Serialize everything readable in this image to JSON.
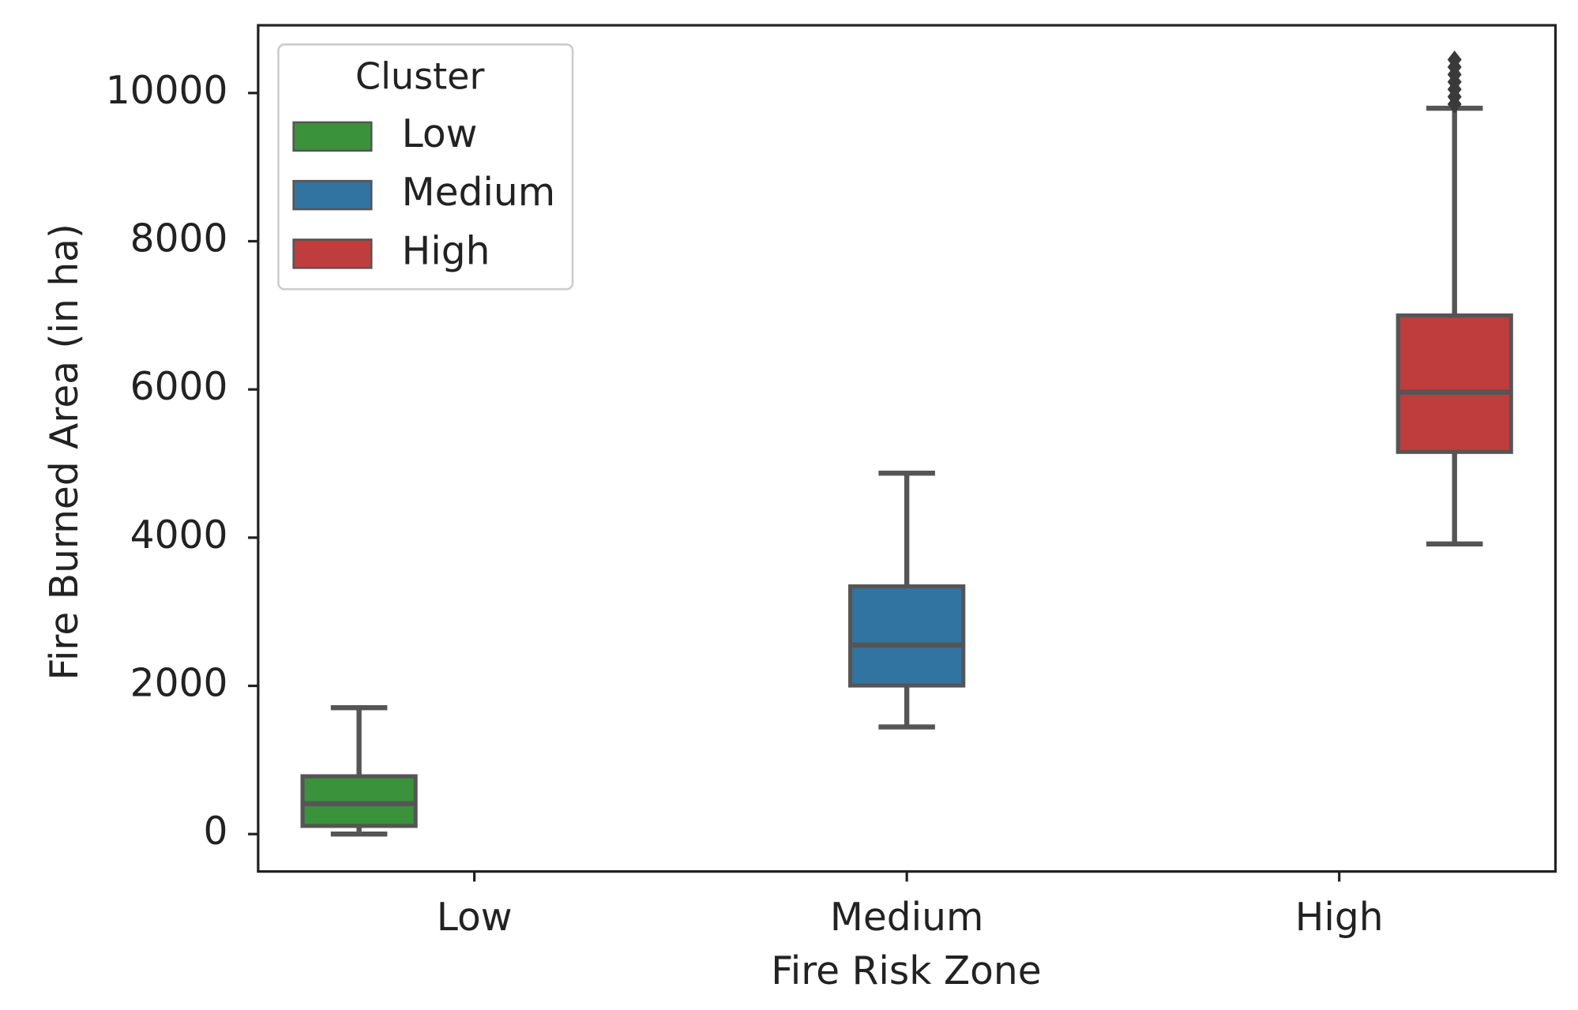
{
  "chart_data": {
    "type": "box",
    "x_label": "Fire Risk Zone",
    "y_label": "Fire Burned Area (in ha)",
    "categories": [
      "Low",
      "Medium",
      "High"
    ],
    "legend_title": "Cluster",
    "legend": "upper left",
    "ylim": [
      -505,
      10914
    ],
    "yticks": [
      0,
      2000,
      4000,
      6000,
      8000,
      10000
    ],
    "series": [
      {
        "name": "Low",
        "color": "#3a923a",
        "values": [
          {
            "min": 0,
            "q1": 110,
            "median": 410,
            "q3": 780,
            "max": 1705,
            "outliers": []
          },
          null,
          null
        ]
      },
      {
        "name": "Medium",
        "color": "#3274a1",
        "values": [
          null,
          {
            "min": 1446,
            "q1": 2005,
            "median": 2551,
            "q3": 3342,
            "max": 4870,
            "outliers": []
          },
          null
        ]
      },
      {
        "name": "High",
        "color": "#c03d3e",
        "values": [
          null,
          null,
          {
            "min": 3915,
            "q1": 5157,
            "median": 5962,
            "q3": 6998,
            "max": 9795,
            "outliers": [
              9850,
              9950,
              10050,
              10150,
              10250,
              10350,
              10450
            ]
          }
        ]
      }
    ]
  }
}
